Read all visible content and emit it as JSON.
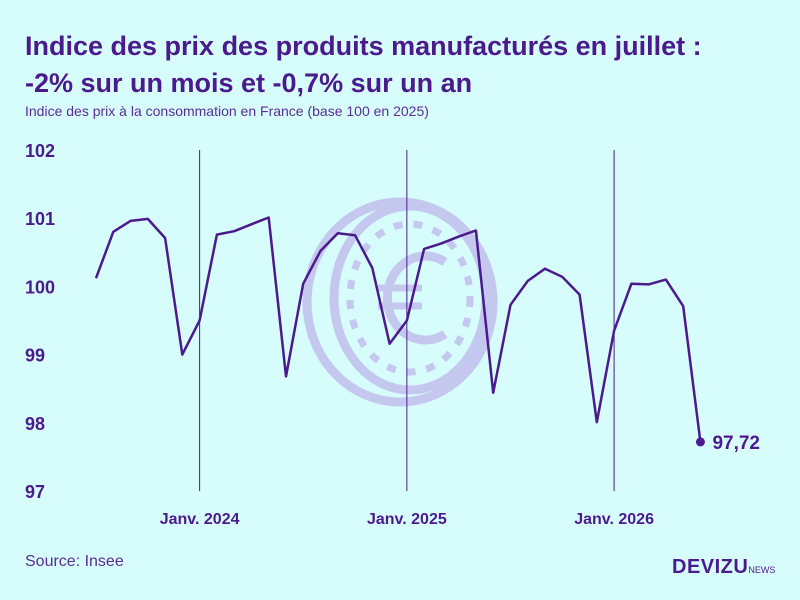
{
  "header": {
    "title_line1": "Indice des prix des produits manufacturés en juillet :",
    "title_line2": "-2% sur un mois et -0,7% sur un an",
    "subtitle": "Indice des prix à la consommation en France (base 100 en 2025)"
  },
  "footer": {
    "source": "Source: Insee",
    "brand_main": "DEVIZU",
    "brand_sub": "NEWS"
  },
  "colors": {
    "background": "#d7fcfc",
    "line": "#4b1a8c",
    "text": "#4b1a8c",
    "coin": "#c5c8ee"
  },
  "chart_data": {
    "type": "line",
    "title": "Indice des prix des produits manufacturés en juillet : -2% sur un mois et -0,7% sur un an",
    "subtitle": "Indice des prix à la consommation en France (base 100 en 2025)",
    "xlabel": "",
    "ylabel": "",
    "ylim": [
      97,
      102
    ],
    "yticks": [
      97,
      98,
      99,
      100,
      101,
      102
    ],
    "ytick_labels": [
      "97",
      "98",
      "99",
      "100",
      "101",
      "102"
    ],
    "xlim": [
      "2023-05",
      "2026-10"
    ],
    "xticks": [
      {
        "x": "2024-01",
        "label": "Janv. 2024"
      },
      {
        "x": "2025-01",
        "label": "Janv. 2025"
      },
      {
        "x": "2026-01",
        "label": "Janv. 2026"
      }
    ],
    "grid": "vertical lines at January",
    "legend": "none",
    "series": [
      {
        "name": "",
        "points": [
          {
            "x": "2023-07",
            "y": 100.12
          },
          {
            "x": "2023-08",
            "y": 100.8
          },
          {
            "x": "2023-09",
            "y": 100.96
          },
          {
            "x": "2023-10",
            "y": 100.99
          },
          {
            "x": "2023-11",
            "y": 100.71
          },
          {
            "x": "2023-12",
            "y": 99.0
          },
          {
            "x": "2024-01",
            "y": 99.5
          },
          {
            "x": "2024-02",
            "y": 100.76
          },
          {
            "x": "2024-03",
            "y": 100.81
          },
          {
            "x": "2024-04",
            "y": 100.91
          },
          {
            "x": "2024-05",
            "y": 101.01
          },
          {
            "x": "2024-06",
            "y": 98.68
          },
          {
            "x": "2024-07",
            "y": 100.04
          },
          {
            "x": "2024-08",
            "y": 100.52
          },
          {
            "x": "2024-09",
            "y": 100.78
          },
          {
            "x": "2024-10",
            "y": 100.75
          },
          {
            "x": "2024-11",
            "y": 100.27
          },
          {
            "x": "2024-12",
            "y": 99.16
          },
          {
            "x": "2025-01",
            "y": 99.5
          },
          {
            "x": "2025-02",
            "y": 100.55
          },
          {
            "x": "2025-03",
            "y": 100.63
          },
          {
            "x": "2025-04",
            "y": 100.73
          },
          {
            "x": "2025-05",
            "y": 100.82
          },
          {
            "x": "2025-06",
            "y": 98.44
          },
          {
            "x": "2025-07",
            "y": 99.73
          },
          {
            "x": "2025-08",
            "y": 100.08
          },
          {
            "x": "2025-09",
            "y": 100.26
          },
          {
            "x": "2025-10",
            "y": 100.14
          },
          {
            "x": "2025-11",
            "y": 99.88
          },
          {
            "x": "2025-12",
            "y": 98.01
          },
          {
            "x": "2026-01",
            "y": 99.35
          },
          {
            "x": "2026-02",
            "y": 100.04
          },
          {
            "x": "2026-03",
            "y": 100.03
          },
          {
            "x": "2026-04",
            "y": 100.1
          },
          {
            "x": "2026-05",
            "y": 99.71
          },
          {
            "x": "2026-06",
            "y": 97.72
          }
        ]
      }
    ],
    "annotations": [
      {
        "x": "2026-06",
        "y": 97.72,
        "text": "97,72"
      }
    ]
  }
}
